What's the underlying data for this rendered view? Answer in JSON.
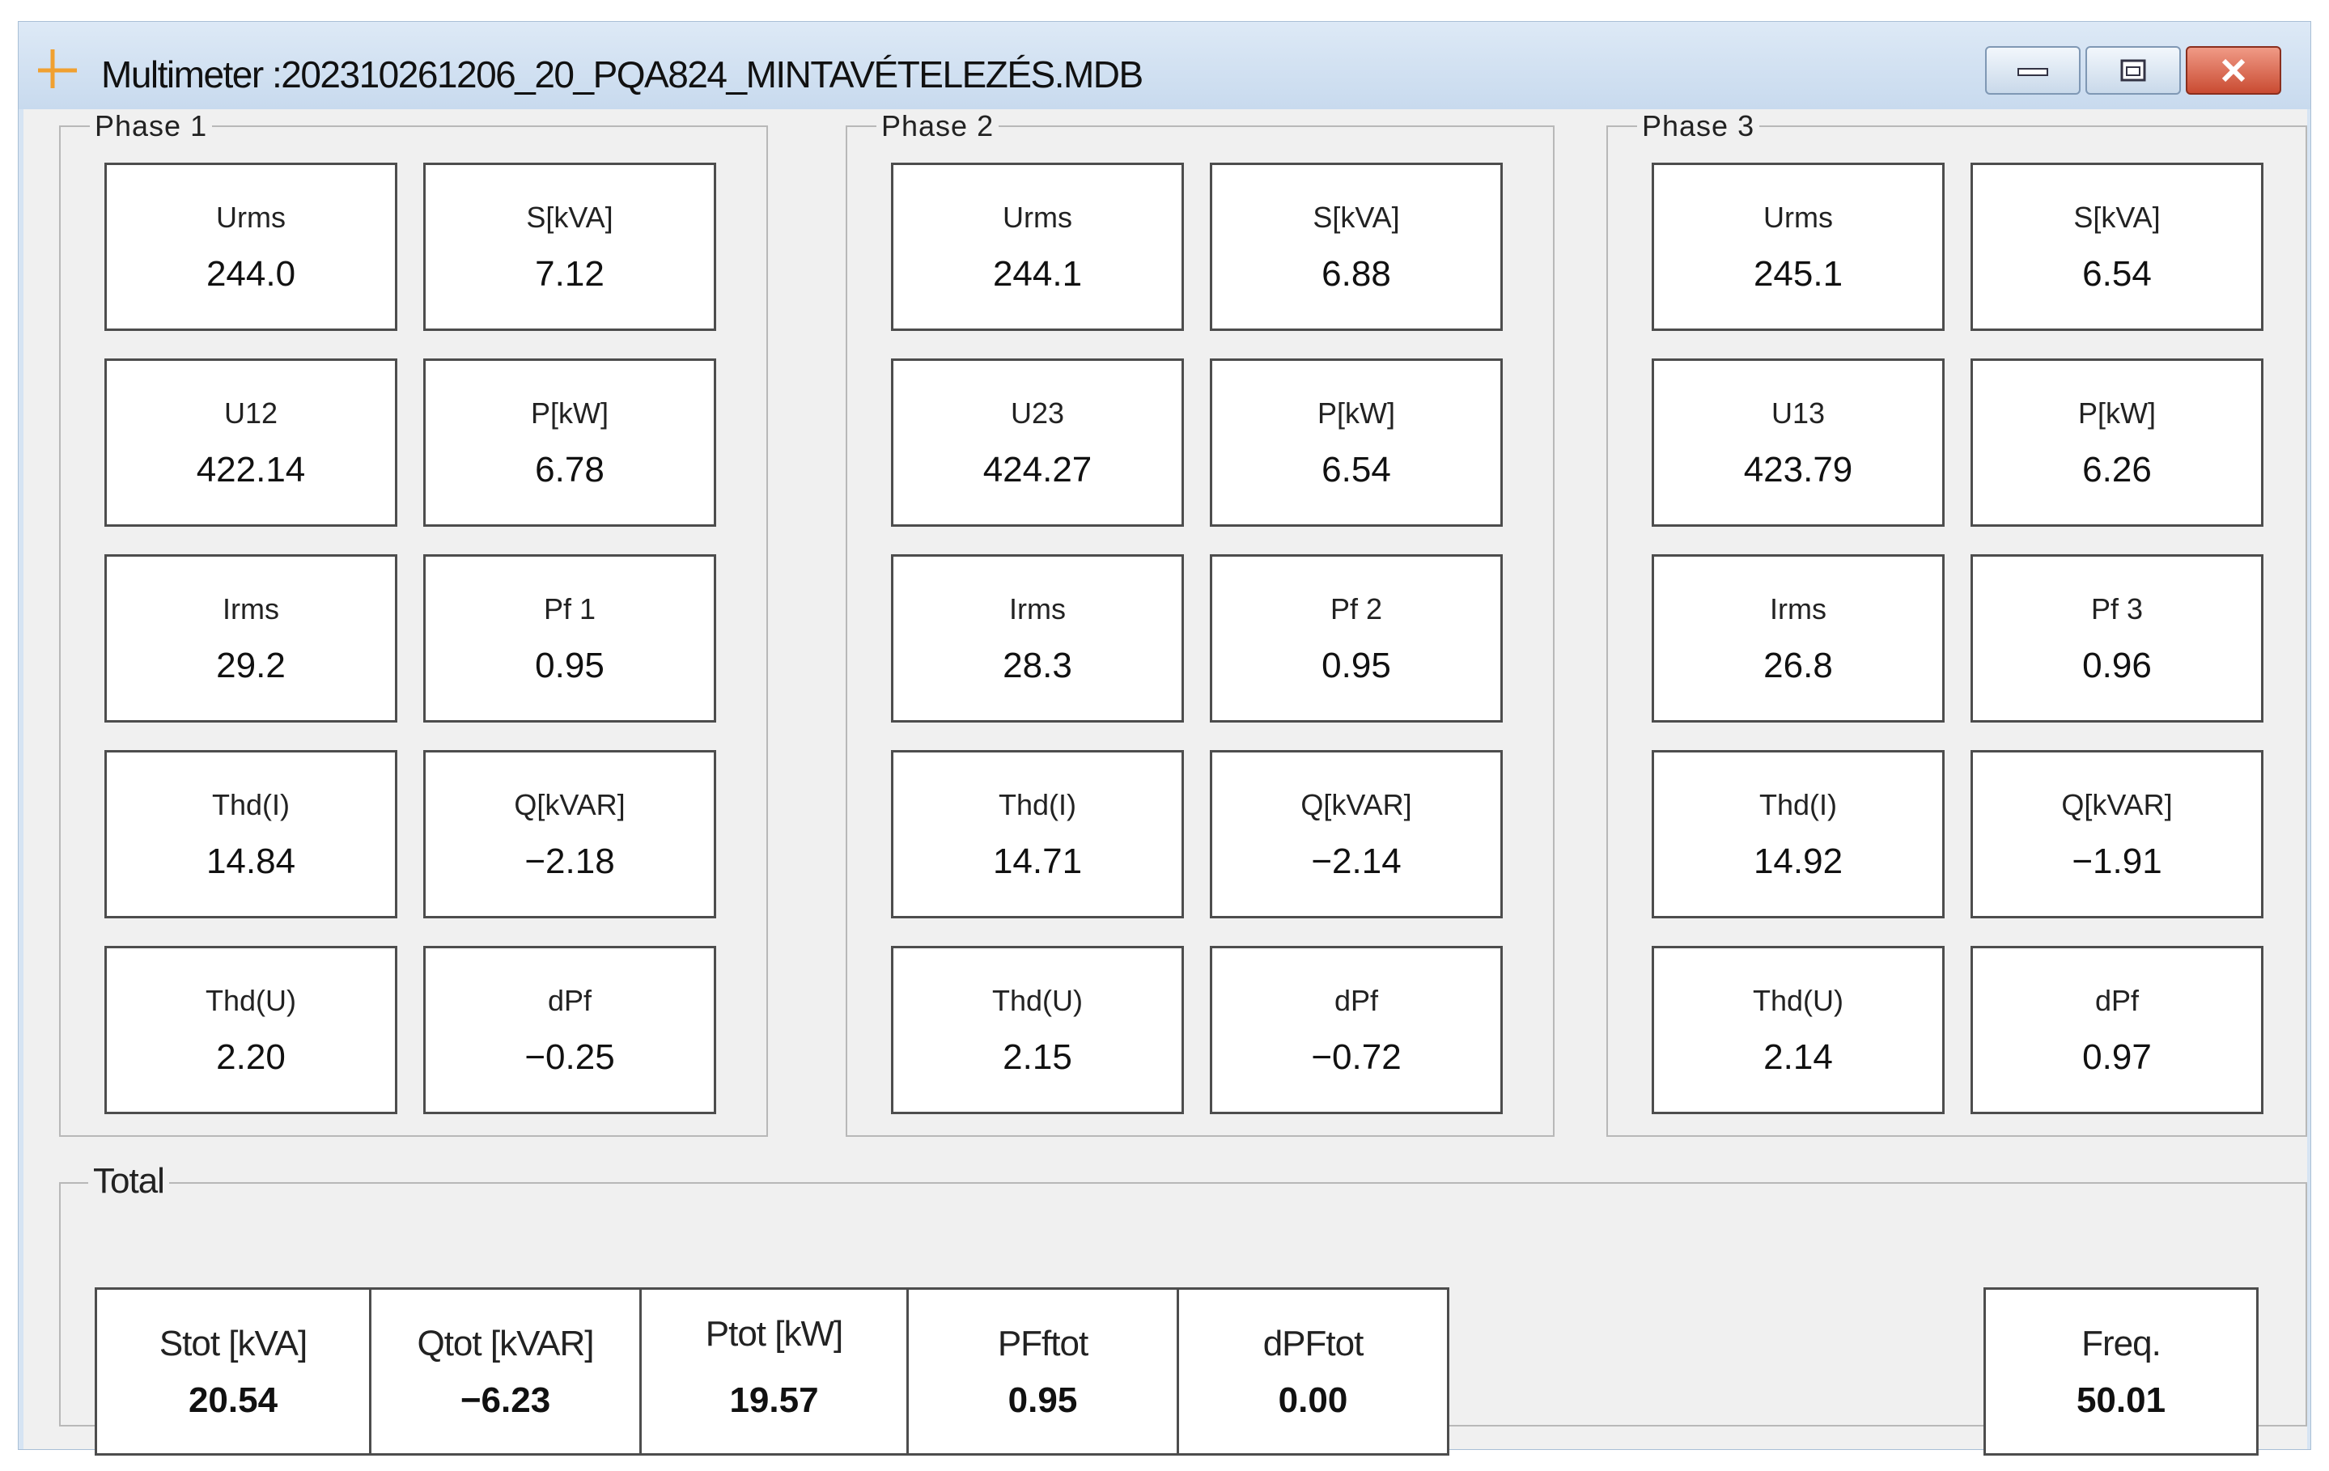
{
  "window": {
    "title": "Multimeter :202310261206_20_PQA824_MINTAVÉTELEZÉS.MDB",
    "icon": "multimeter-crosshair-icon",
    "buttons": [
      "minimize-icon",
      "maximize-icon",
      "close-icon"
    ]
  },
  "phases": [
    {
      "title": "Phase 1",
      "cells": [
        {
          "label": "Urms",
          "value": "244.0"
        },
        {
          "label": "S[kVA]",
          "value": "7.12"
        },
        {
          "label": "U12",
          "value": "422.14"
        },
        {
          "label": "P[kW]",
          "value": "6.78"
        },
        {
          "label": "Irms",
          "value": "29.2"
        },
        {
          "label": "Pf 1",
          "value": "0.95"
        },
        {
          "label": "Thd(I)",
          "value": "14.84"
        },
        {
          "label": "Q[kVAR]",
          "value": "−2.18"
        },
        {
          "label": "Thd(U)",
          "value": "2.20"
        },
        {
          "label": "dPf",
          "value": "−0.25"
        }
      ]
    },
    {
      "title": "Phase 2",
      "cells": [
        {
          "label": "Urms",
          "value": "244.1"
        },
        {
          "label": "S[kVA]",
          "value": "6.88"
        },
        {
          "label": "U23",
          "value": "424.27"
        },
        {
          "label": "P[kW]",
          "value": "6.54"
        },
        {
          "label": "Irms",
          "value": "28.3"
        },
        {
          "label": "Pf 2",
          "value": "0.95"
        },
        {
          "label": "Thd(I)",
          "value": "14.71"
        },
        {
          "label": "Q[kVAR]",
          "value": "−2.14"
        },
        {
          "label": "Thd(U)",
          "value": "2.15"
        },
        {
          "label": "dPf",
          "value": "−0.72"
        }
      ]
    },
    {
      "title": "Phase 3",
      "cells": [
        {
          "label": "Urms",
          "value": "245.1"
        },
        {
          "label": "S[kVA]",
          "value": "6.54"
        },
        {
          "label": "U13",
          "value": "423.79"
        },
        {
          "label": "P[kW]",
          "value": "6.26"
        },
        {
          "label": "Irms",
          "value": "26.8"
        },
        {
          "label": "Pf 3",
          "value": "0.96"
        },
        {
          "label": "Thd(I)",
          "value": "14.92"
        },
        {
          "label": "Q[kVAR]",
          "value": "−1.91"
        },
        {
          "label": "Thd(U)",
          "value": "2.14"
        },
        {
          "label": "dPf",
          "value": "0.97"
        }
      ]
    }
  ],
  "total": {
    "title": "Total",
    "columns": [
      {
        "label": "Stot [kVA]",
        "value": "20.54"
      },
      {
        "label": "Qtot [kVAR]",
        "value": "−6.23"
      },
      {
        "label": "Ptot [kW]",
        "value": "19.57"
      },
      {
        "label": "PFftot",
        "value": "0.95"
      },
      {
        "label": "dPFtot",
        "value": "0.00"
      }
    ],
    "freq": {
      "label": "Freq.",
      "value": "50.01"
    }
  }
}
